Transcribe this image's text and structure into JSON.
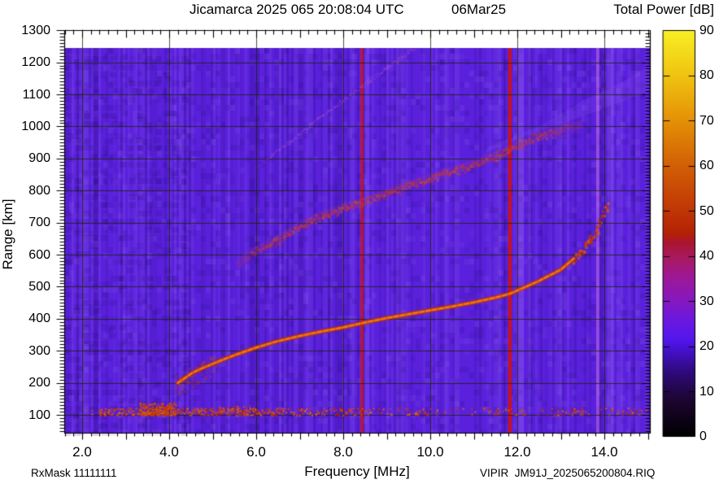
{
  "header": {
    "title_left": "Jicamarca 2025 065 20:08:04 UTC",
    "title_right": "06Mar25"
  },
  "colorbar": {
    "title": "Total Power [dB]",
    "min": 0,
    "max": 90,
    "tick_values": [
      90,
      80,
      70,
      60,
      50,
      40,
      30,
      20,
      10,
      0
    ],
    "tick_labels": [
      "90",
      "80",
      "70",
      "60",
      "50",
      "40",
      "30",
      "20",
      "10",
      "0"
    ],
    "gradient_stops": [
      [
        0,
        "#000000"
      ],
      [
        8,
        "#1d0530"
      ],
      [
        14,
        "#2d0a78"
      ],
      [
        20,
        "#4a12d8"
      ],
      [
        22,
        "#5617ee"
      ],
      [
        27,
        "#7219d8"
      ],
      [
        30,
        "#8618c0"
      ],
      [
        35,
        "#9d189a"
      ],
      [
        39,
        "#a81a68"
      ],
      [
        43,
        "#ab1530"
      ],
      [
        45,
        "#b42105"
      ],
      [
        51,
        "#c23a05"
      ],
      [
        60,
        "#d25f06"
      ],
      [
        70,
        "#e49107"
      ],
      [
        80,
        "#f0c310"
      ],
      [
        90,
        "#f8ef25"
      ]
    ]
  },
  "axes": {
    "x": {
      "label": "Frequency [MHz]",
      "min": 1.59,
      "max": 15.07,
      "tick_values": [
        2,
        4,
        6,
        8,
        10,
        12,
        14
      ],
      "tick_labels": [
        "2.0",
        "4.0",
        "6.0",
        "8.0",
        "10.0",
        "12.0",
        "14.0"
      ],
      "major_tick_step_mhz": 1.0,
      "minor_tick_step_mhz": 0.2,
      "grid_values": [
        2,
        4,
        6,
        8,
        10,
        12,
        14
      ]
    },
    "y": {
      "label": "Range [km]",
      "min": 36,
      "max": 1300,
      "tick_values": [
        1300,
        1200,
        1100,
        1000,
        900,
        800,
        700,
        600,
        500,
        400,
        300,
        200,
        100
      ],
      "tick_labels": [
        "1300",
        "1200",
        "1100",
        "1000",
        "900",
        "800",
        "700",
        "600",
        "500",
        "400",
        "300",
        "200",
        "100"
      ],
      "major_tick_step_km": 100,
      "minor_tick_step_km": 10,
      "grid_values": [
        1200,
        1100,
        1000,
        900,
        800,
        700,
        600,
        500,
        400,
        300,
        200,
        100
      ]
    }
  },
  "footer": {
    "left": "RxMask 11111111",
    "right": "VIPIR  JM91J_2025065200804.RIQ"
  },
  "chart_data": {
    "type": "heatmap",
    "title": "Jicamarca 2025 065 20:08:04 UTC  06Mar25",
    "xlabel": "Frequency [MHz]",
    "ylabel": "Range [km]",
    "zlabel": "Total Power [dB]",
    "xlim": [
      1.59,
      15.07
    ],
    "ylim": [
      36,
      1300
    ],
    "zlim": [
      0,
      90
    ],
    "data_region_top_km": 1244,
    "background_level_db": 22,
    "background_color": "#5a20dc",
    "grid": true,
    "grid_lines": {
      "x_step_mhz": 2,
      "y_step_km": 100
    },
    "series": [
      {
        "name": "F-region main echo trace",
        "style": "trace",
        "color": "#d84e06",
        "core_color": "#ee7e10",
        "edge_color": "#b32e08",
        "scatter_start_mhz": 13.3,
        "points": [
          [
            4.2,
            200
          ],
          [
            4.35,
            214
          ],
          [
            4.5,
            228
          ],
          [
            4.65,
            239
          ],
          [
            4.8,
            248
          ],
          [
            5.0,
            259
          ],
          [
            5.25,
            273
          ],
          [
            5.5,
            286
          ],
          [
            5.75,
            298
          ],
          [
            6.0,
            310
          ],
          [
            6.5,
            330
          ],
          [
            7.0,
            346
          ],
          [
            7.5,
            360
          ],
          [
            8.0,
            373
          ],
          [
            8.43,
            386
          ],
          [
            9.0,
            402
          ],
          [
            9.5,
            414
          ],
          [
            10.0,
            426
          ],
          [
            10.5,
            438
          ],
          [
            11.0,
            451
          ],
          [
            11.5,
            466
          ],
          [
            11.83,
            478
          ],
          [
            12.0,
            488
          ],
          [
            12.5,
            518
          ],
          [
            13.0,
            553
          ],
          [
            13.3,
            588
          ],
          [
            13.55,
            630
          ],
          [
            13.75,
            666
          ],
          [
            13.88,
            700
          ],
          [
            13.97,
            728
          ],
          [
            14.05,
            754
          ]
        ]
      },
      {
        "name": "second-hop echo trace",
        "style": "fuzzy-trace",
        "color": "#c23737",
        "fade_start_mhz": 12.4,
        "points": [
          [
            5.55,
            568
          ],
          [
            5.9,
            606
          ],
          [
            6.5,
            650
          ],
          [
            7.0,
            690
          ],
          [
            7.5,
            723
          ],
          [
            8.0,
            748
          ],
          [
            8.43,
            764
          ],
          [
            9.0,
            793
          ],
          [
            9.5,
            818
          ],
          [
            10.0,
            841
          ],
          [
            10.6,
            866
          ],
          [
            11.0,
            884
          ],
          [
            11.5,
            910
          ],
          [
            12.0,
            940
          ],
          [
            12.6,
            975
          ],
          [
            13.2,
            998
          ],
          [
            13.5,
            1008
          ]
        ]
      },
      {
        "name": "faint multi-hop echo trace",
        "style": "faint-line",
        "color": "#cd64be",
        "points": [
          [
            5.9,
            862
          ],
          [
            7.5,
            1035
          ],
          [
            9.62,
            1247
          ]
        ]
      },
      {
        "name": "E-region scatter band",
        "style": "speckle-band",
        "colors": [
          "#b81e00",
          "#cc3c00",
          "#e05800",
          "#ea6e06"
        ],
        "range_km": [
          98,
          130
        ],
        "freq_span": [
          2.1,
          15.04
        ],
        "dense_span": [
          2.3,
          6.6
        ],
        "blob": {
          "freq_span": [
            3.3,
            4.15
          ],
          "top_km": 140
        }
      }
    ],
    "rfi_lines": [
      {
        "mhz": 8.43,
        "color": "#ce1212",
        "width": 3
      },
      {
        "mhz": 11.83,
        "color": "#ce1212",
        "width": 4
      }
    ],
    "light_bands": [
      {
        "mhz": 12.07,
        "width": 9,
        "alpha": 0.3,
        "pink": false
      },
      {
        "mhz": 12.28,
        "width": 4,
        "alpha": 0.16,
        "pink": false
      },
      {
        "mhz": 13.85,
        "width": 4,
        "alpha": 0.45,
        "pink": true
      },
      {
        "mhz": 14.15,
        "width": 8,
        "alpha": 0.22,
        "pink": false
      },
      {
        "mhz": 14.33,
        "width": 5,
        "alpha": 0.15,
        "pink": false
      },
      {
        "mhz": 9.3,
        "width": 10,
        "alpha": 0.12,
        "pink": false
      },
      {
        "mhz": 10.38,
        "width": 6,
        "alpha": 0.1,
        "pink": false
      },
      {
        "mhz": 8.55,
        "width": 5,
        "alpha": 0.13,
        "pink": false
      },
      {
        "mhz": 6.9,
        "width": 4,
        "alpha": 0.1,
        "pink": false
      }
    ],
    "haze_wedge": {
      "lower": [
        [
          11.3,
          920
        ],
        [
          12.5,
          985
        ],
        [
          13.5,
          1030
        ],
        [
          14.3,
          1072
        ],
        [
          15.05,
          1110
        ]
      ],
      "upper": [
        [
          11.3,
          935
        ],
        [
          12.5,
          1000
        ],
        [
          13.5,
          1080
        ],
        [
          14.3,
          1130
        ],
        [
          15.05,
          1190
        ]
      ],
      "alpha": 0.14
    }
  }
}
